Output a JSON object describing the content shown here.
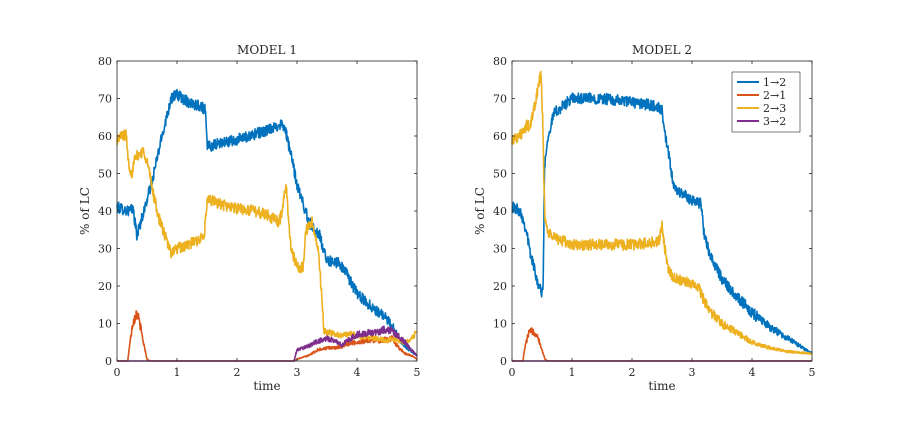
{
  "chart_data": [
    {
      "type": "line",
      "title": "MODEL 1",
      "xlabel": "time",
      "ylabel": "% of LC",
      "xlim": [
        0,
        5
      ],
      "ylim": [
        0,
        80
      ],
      "xticks": [
        "0",
        "1",
        "2",
        "3",
        "4",
        "5"
      ],
      "yticks": [
        "0",
        "10",
        "20",
        "30",
        "40",
        "50",
        "60",
        "70",
        "80"
      ],
      "legend": false,
      "series": [
        {
          "name": "1→2",
          "color": "#0072BD",
          "x": [
            0,
            0.1,
            0.2,
            0.27,
            0.33,
            0.45,
            0.6,
            0.75,
            0.9,
            1.0,
            1.2,
            1.4,
            1.47,
            1.5,
            1.55,
            1.7,
            2.0,
            2.3,
            2.6,
            2.7,
            2.75,
            2.8,
            2.9,
            3.0,
            3.2,
            3.3,
            3.4,
            3.42,
            3.5,
            3.7,
            3.75,
            3.8,
            4.0,
            4.2,
            4.4,
            4.5,
            4.6,
            4.7,
            4.8,
            4.9,
            5.0
          ],
          "y": [
            41,
            40.5,
            40,
            40.5,
            33.5,
            40,
            49,
            60,
            70,
            71,
            69,
            68,
            67,
            58,
            57,
            58,
            59,
            60.5,
            62,
            63,
            63.5,
            62,
            55,
            47,
            37,
            35,
            33,
            30,
            27,
            26,
            25,
            24,
            18,
            15,
            12.5,
            11,
            9,
            6,
            4,
            2.5,
            1.5
          ]
        },
        {
          "name": "2→1",
          "color": "#D95319",
          "x": [
            0,
            0.18,
            0.2,
            0.26,
            0.33,
            0.38,
            0.44,
            0.5,
            0.55,
            2.95,
            3.0,
            3.1,
            3.2,
            3.3,
            3.35,
            3.4,
            3.5,
            3.6,
            3.75,
            3.8,
            4.0,
            4.2,
            4.4,
            4.6,
            4.65,
            4.7,
            4.8,
            4.9,
            5.0
          ],
          "y": [
            0,
            0,
            3,
            10,
            13,
            10,
            5,
            0.5,
            0,
            0,
            0.5,
            1,
            1.5,
            2.5,
            3,
            3.2,
            3.4,
            3.5,
            3.7,
            4.5,
            5,
            5.5,
            5.5,
            6,
            4.5,
            3.5,
            2,
            1.5,
            0.5
          ]
        },
        {
          "name": "2→3",
          "color": "#EDB120",
          "x": [
            0,
            0.08,
            0.15,
            0.2,
            0.25,
            0.3,
            0.35,
            0.45,
            0.52,
            0.6,
            0.7,
            0.85,
            0.9,
            1.0,
            1.2,
            1.3,
            1.45,
            1.5,
            1.55,
            1.7,
            1.9,
            2.1,
            2.3,
            2.5,
            2.7,
            2.75,
            2.8,
            2.82,
            2.85,
            2.9,
            3.0,
            3.1,
            3.15,
            3.25,
            3.35,
            3.4,
            3.45,
            3.5,
            3.7,
            3.9,
            4.1,
            4.3,
            4.5,
            4.6,
            4.7,
            4.8,
            4.9,
            5.0
          ],
          "y": [
            59,
            60,
            60.5,
            52,
            50,
            54,
            55,
            56,
            52,
            45,
            38,
            31,
            29,
            30,
            31,
            32,
            33,
            42,
            43,
            42,
            41,
            40.5,
            40,
            39,
            37,
            40,
            45,
            47,
            40,
            30,
            25,
            25,
            35,
            37,
            30,
            20,
            8,
            7.5,
            7,
            7,
            6.5,
            6,
            5.5,
            6,
            5.5,
            5,
            5.5,
            8
          ]
        },
        {
          "name": "3→2",
          "color": "#7E2F8E",
          "x": [
            0,
            2.95,
            3.0,
            3.1,
            3.2,
            3.3,
            3.4,
            3.5,
            3.6,
            3.7,
            3.75,
            3.8,
            3.9,
            4.0,
            4.2,
            4.4,
            4.5,
            4.6,
            4.65,
            4.7,
            4.8,
            4.9,
            5.0
          ],
          "y": [
            0,
            0,
            3,
            3.5,
            4,
            5,
            5.5,
            6,
            5.5,
            5,
            4,
            5,
            6,
            7,
            7.5,
            8,
            8.5,
            8,
            7,
            6.5,
            5,
            3,
            1.5
          ]
        }
      ]
    },
    {
      "type": "line",
      "title": "MODEL 2",
      "xlabel": "time",
      "ylabel": "% of LC",
      "xlim": [
        0,
        5
      ],
      "ylim": [
        0,
        80
      ],
      "xticks": [
        "0",
        "1",
        "2",
        "3",
        "4",
        "5"
      ],
      "yticks": [
        "0",
        "10",
        "20",
        "30",
        "40",
        "50",
        "60",
        "70",
        "80"
      ],
      "legend": true,
      "legend_position": "top-right",
      "series": [
        {
          "name": "1→2",
          "color": "#0072BD",
          "x": [
            0,
            0.1,
            0.15,
            0.2,
            0.25,
            0.3,
            0.35,
            0.4,
            0.43,
            0.47,
            0.5,
            0.52,
            0.54,
            0.56,
            0.6,
            0.7,
            0.85,
            1.0,
            1.5,
            2.0,
            2.4,
            2.5,
            2.55,
            2.6,
            2.7,
            3.0,
            3.15,
            3.2,
            3.3,
            3.5,
            3.7,
            4.0,
            4.3,
            4.6,
            4.8,
            5.0
          ],
          "y": [
            41,
            40.5,
            39.5,
            37,
            34,
            29,
            26,
            23,
            21,
            19,
            18.5,
            20,
            50,
            55,
            60,
            66,
            68,
            70,
            70,
            69,
            68,
            67,
            60,
            56,
            46,
            43,
            42,
            34,
            28,
            22,
            18,
            13,
            9,
            6,
            4,
            2
          ]
        },
        {
          "name": "2→1",
          "color": "#D95319",
          "x": [
            0,
            0.18,
            0.22,
            0.28,
            0.35,
            0.42,
            0.48,
            0.55,
            0.6,
            5.0
          ],
          "y": [
            0,
            0,
            4,
            7.5,
            8,
            7,
            4,
            0.5,
            0,
            0
          ]
        },
        {
          "name": "2→3",
          "color": "#EDB120",
          "x": [
            0,
            0.1,
            0.2,
            0.25,
            0.3,
            0.35,
            0.4,
            0.45,
            0.48,
            0.51,
            0.53,
            0.55,
            0.6,
            0.7,
            0.85,
            1.0,
            1.5,
            2.0,
            2.3,
            2.45,
            2.5,
            2.55,
            2.6,
            2.7,
            2.9,
            3.1,
            3.2,
            3.3,
            3.5,
            3.8,
            4.0,
            4.3,
            4.6,
            5.0
          ],
          "y": [
            59,
            60,
            61,
            63,
            62,
            66,
            70,
            74,
            77,
            65,
            50,
            38,
            34,
            33,
            32,
            31,
            31,
            31,
            31.5,
            32,
            36,
            30,
            25,
            22,
            21,
            20,
            16,
            13,
            10,
            7,
            5,
            3.5,
            2.5,
            2
          ]
        },
        {
          "name": "3→2",
          "color": "#7E2F8E",
          "x": [
            0,
            5
          ],
          "y": [
            0,
            0
          ]
        }
      ]
    }
  ]
}
